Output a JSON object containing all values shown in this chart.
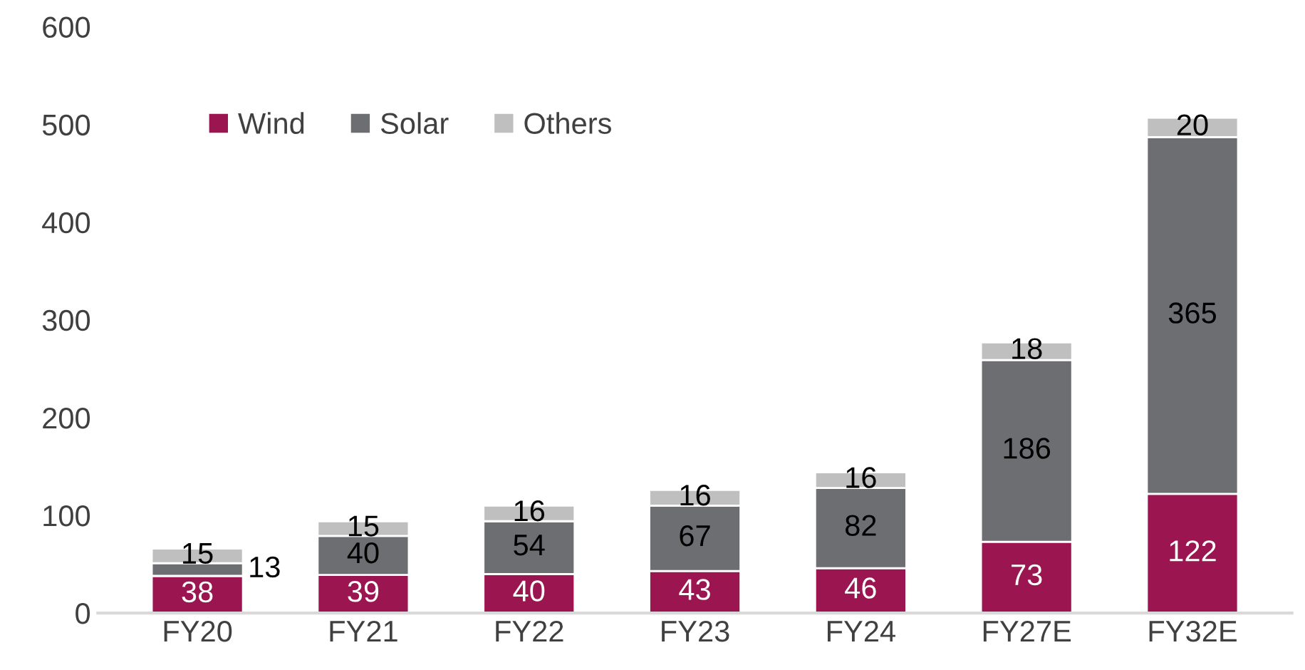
{
  "chart_data": {
    "type": "bar",
    "stacked": true,
    "categories": [
      "FY20",
      "FY21",
      "FY22",
      "FY23",
      "FY24",
      "FY27E",
      "FY32E"
    ],
    "series": [
      {
        "name": "Wind",
        "color": "#9b1550",
        "values": [
          38,
          39,
          40,
          43,
          46,
          73,
          122
        ]
      },
      {
        "name": "Solar",
        "color": "#6d6e71",
        "values": [
          13,
          40,
          54,
          67,
          82,
          186,
          365
        ]
      },
      {
        "name": "Others",
        "color": "#bfbfbf",
        "values": [
          15,
          15,
          16,
          16,
          16,
          18,
          20
        ]
      }
    ],
    "ylim": [
      0,
      600
    ],
    "yticks": [
      0,
      100,
      200,
      300,
      400,
      500,
      600
    ],
    "grid": false,
    "legend": "top left",
    "data_labels": true
  }
}
